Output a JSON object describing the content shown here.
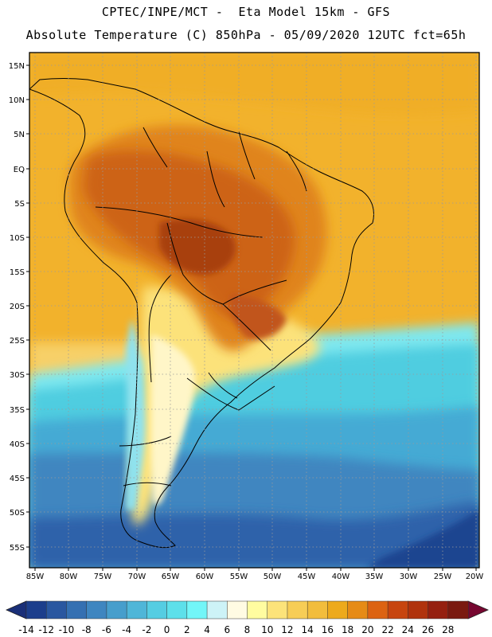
{
  "header": {
    "title_line1": "CPTEC/INPE/MCT -  Eta Model 15km - GFS",
    "title_line2": "Absolute Temperature (C) 850hPa - 05/09/2020 12UTC fct=65h"
  },
  "map": {
    "lat_labels": [
      "15N",
      "10N",
      "5N",
      "EQ",
      "5S",
      "10S",
      "15S",
      "20S",
      "25S",
      "30S",
      "35S",
      "40S",
      "45S",
      "50S",
      "55S"
    ],
    "lon_labels": [
      "85W",
      "80W",
      "75W",
      "70W",
      "65W",
      "60W",
      "55W",
      "50W",
      "45W",
      "40W",
      "35W",
      "30W",
      "25W",
      "20W"
    ],
    "colors": {
      "ocean_south": "#3f7fc4",
      "ocean_mid": "#45c8dc",
      "warm": "#f0b030",
      "hot": "#d86a1c",
      "very_hot": "#b84512"
    }
  },
  "colorbar": {
    "labels": [
      "-14",
      "-12",
      "-10",
      "-8",
      "-6",
      "-4",
      "-2",
      "0",
      "2",
      "4",
      "6",
      "8",
      "10",
      "12",
      "14",
      "16",
      "18",
      "20",
      "22",
      "24",
      "26",
      "28"
    ],
    "colors": [
      "#1c3e8c",
      "#2a57a0",
      "#3570b2",
      "#3f86c0",
      "#479ecc",
      "#4fb6d8",
      "#55cde2",
      "#5de0ea",
      "#72f6f8",
      "#cdf3f7",
      "#fffbe3",
      "#fffca0",
      "#fce37a",
      "#f7cd56",
      "#f2bd3c",
      "#edaa1c",
      "#e68b16",
      "#dc6312",
      "#c7450f",
      "#b0330d",
      "#952010",
      "#7a1a10"
    ],
    "under_color": "#1a2f78",
    "over_color": "#760730"
  }
}
